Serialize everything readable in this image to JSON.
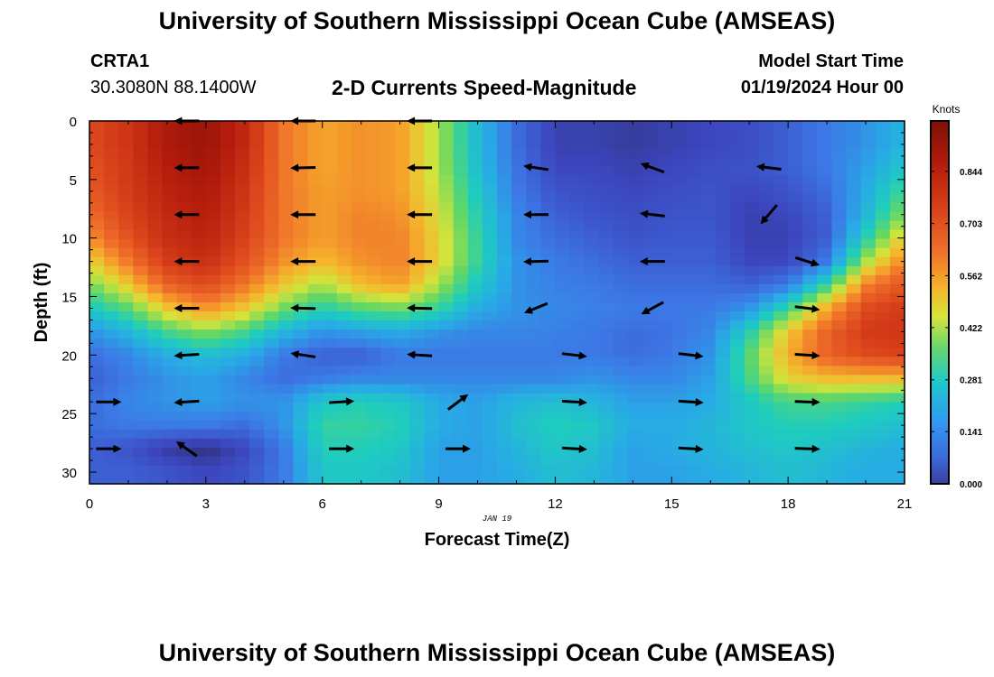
{
  "header": {
    "title": "University of Southern Mississippi Ocean Cube (AMSEAS)",
    "station": "CRTA1",
    "coordinates": "30.3080N  88.1400W",
    "plot_name": "2-D Currents Speed-Magnitude",
    "model_start_label": "Model Start Time",
    "model_start_value": "01/19/2024 Hour 00"
  },
  "footer": {
    "title": "University of Southern Mississippi Ocean Cube (AMSEAS)"
  },
  "chart_data": {
    "type": "heatmap",
    "xlabel": "Forecast Time(Z)",
    "ylabel": "Depth (ft)",
    "date_label": "JAN 19",
    "xlim": [
      0,
      21
    ],
    "ylim": [
      0,
      31
    ],
    "x_ticks": [
      "0",
      "3",
      "6",
      "9",
      "12",
      "15",
      "18",
      "21"
    ],
    "y_ticks": [
      "0",
      "5",
      "10",
      "15",
      "20",
      "25",
      "30"
    ],
    "colorbar": {
      "unit": "Knots",
      "range": [
        0,
        0.98
      ],
      "tick_labels": [
        "0.000",
        "0.141",
        "0.281",
        "0.422",
        "0.562",
        "0.703",
        "0.844"
      ],
      "tick_values": [
        0.0,
        0.141,
        0.281,
        0.422,
        0.562,
        0.703,
        0.844
      ]
    },
    "speed_grid": {
      "times": [
        0,
        1,
        2,
        3,
        4,
        5,
        6,
        7,
        8,
        9,
        10,
        11,
        12,
        13,
        14,
        15,
        16,
        17,
        18,
        19,
        20,
        21
      ],
      "depths": [
        0,
        2,
        4,
        6,
        8,
        10,
        12,
        14,
        16,
        18,
        20,
        22,
        24,
        26,
        28,
        30
      ],
      "values": [
        [
          0.72,
          0.78,
          0.88,
          0.92,
          0.82,
          0.62,
          0.55,
          0.58,
          0.56,
          0.42,
          0.25,
          0.12,
          0.05,
          0.05,
          0.04,
          0.05,
          0.06,
          0.07,
          0.1,
          0.14,
          0.18,
          0.24
        ],
        [
          0.72,
          0.78,
          0.88,
          0.92,
          0.82,
          0.62,
          0.55,
          0.58,
          0.56,
          0.42,
          0.25,
          0.12,
          0.05,
          0.05,
          0.04,
          0.05,
          0.06,
          0.07,
          0.1,
          0.14,
          0.18,
          0.24
        ],
        [
          0.7,
          0.77,
          0.86,
          0.9,
          0.8,
          0.62,
          0.55,
          0.58,
          0.56,
          0.42,
          0.26,
          0.13,
          0.06,
          0.06,
          0.05,
          0.06,
          0.07,
          0.08,
          0.1,
          0.14,
          0.2,
          0.28
        ],
        [
          0.68,
          0.76,
          0.84,
          0.88,
          0.78,
          0.62,
          0.56,
          0.58,
          0.56,
          0.44,
          0.28,
          0.14,
          0.08,
          0.07,
          0.06,
          0.07,
          0.08,
          0.06,
          0.08,
          0.12,
          0.22,
          0.34
        ],
        [
          0.64,
          0.74,
          0.82,
          0.86,
          0.76,
          0.62,
          0.56,
          0.6,
          0.58,
          0.46,
          0.3,
          0.16,
          0.1,
          0.08,
          0.07,
          0.08,
          0.08,
          0.05,
          0.06,
          0.1,
          0.24,
          0.4
        ],
        [
          0.58,
          0.7,
          0.8,
          0.84,
          0.74,
          0.62,
          0.56,
          0.6,
          0.6,
          0.48,
          0.32,
          0.16,
          0.12,
          0.1,
          0.08,
          0.09,
          0.09,
          0.05,
          0.05,
          0.1,
          0.3,
          0.5
        ],
        [
          0.48,
          0.62,
          0.76,
          0.8,
          0.7,
          0.58,
          0.52,
          0.58,
          0.6,
          0.48,
          0.32,
          0.18,
          0.14,
          0.12,
          0.1,
          0.1,
          0.1,
          0.06,
          0.06,
          0.14,
          0.42,
          0.6
        ],
        [
          0.38,
          0.5,
          0.66,
          0.72,
          0.62,
          0.5,
          0.42,
          0.52,
          0.56,
          0.42,
          0.28,
          0.18,
          0.15,
          0.14,
          0.12,
          0.12,
          0.12,
          0.1,
          0.14,
          0.32,
          0.6,
          0.7
        ],
        [
          0.28,
          0.36,
          0.5,
          0.58,
          0.5,
          0.38,
          0.3,
          0.36,
          0.38,
          0.32,
          0.22,
          0.18,
          0.16,
          0.15,
          0.14,
          0.14,
          0.14,
          0.18,
          0.32,
          0.54,
          0.72,
          0.76
        ],
        [
          0.18,
          0.24,
          0.34,
          0.4,
          0.34,
          0.24,
          0.18,
          0.2,
          0.22,
          0.18,
          0.16,
          0.16,
          0.15,
          0.14,
          0.12,
          0.13,
          0.16,
          0.3,
          0.5,
          0.66,
          0.76,
          0.78
        ],
        [
          0.12,
          0.16,
          0.22,
          0.26,
          0.22,
          0.14,
          0.1,
          0.1,
          0.14,
          0.14,
          0.14,
          0.14,
          0.14,
          0.14,
          0.12,
          0.14,
          0.18,
          0.36,
          0.54,
          0.66,
          0.72,
          0.74
        ],
        [
          0.1,
          0.14,
          0.18,
          0.2,
          0.16,
          0.12,
          0.14,
          0.16,
          0.16,
          0.16,
          0.16,
          0.16,
          0.16,
          0.18,
          0.16,
          0.16,
          0.2,
          0.34,
          0.48,
          0.52,
          0.52,
          0.52
        ],
        [
          0.12,
          0.16,
          0.18,
          0.2,
          0.18,
          0.18,
          0.28,
          0.3,
          0.28,
          0.22,
          0.2,
          0.24,
          0.26,
          0.24,
          0.2,
          0.2,
          0.22,
          0.28,
          0.34,
          0.34,
          0.32,
          0.3
        ],
        [
          0.12,
          0.14,
          0.14,
          0.14,
          0.12,
          0.18,
          0.32,
          0.32,
          0.3,
          0.22,
          0.2,
          0.26,
          0.3,
          0.28,
          0.22,
          0.22,
          0.24,
          0.28,
          0.3,
          0.3,
          0.28,
          0.26
        ],
        [
          0.1,
          0.08,
          0.04,
          0.02,
          0.06,
          0.14,
          0.3,
          0.3,
          0.28,
          0.2,
          0.2,
          0.24,
          0.28,
          0.26,
          0.2,
          0.22,
          0.24,
          0.26,
          0.28,
          0.26,
          0.24,
          0.22
        ],
        [
          0.1,
          0.1,
          0.08,
          0.06,
          0.08,
          0.14,
          0.28,
          0.28,
          0.26,
          0.2,
          0.2,
          0.22,
          0.26,
          0.24,
          0.2,
          0.2,
          0.22,
          0.24,
          0.26,
          0.24,
          0.22,
          0.22
        ]
      ]
    },
    "current_vectors": [
      {
        "t": 2.5,
        "d": 0,
        "dx": -1,
        "dy": 0
      },
      {
        "t": 5.5,
        "d": 0,
        "dx": -1,
        "dy": 0
      },
      {
        "t": 8.5,
        "d": 0,
        "dx": -1,
        "dy": 0
      },
      {
        "t": 2.5,
        "d": 4,
        "dx": -1,
        "dy": 0
      },
      {
        "t": 5.5,
        "d": 4,
        "dx": -1,
        "dy": 0.03
      },
      {
        "t": 8.5,
        "d": 4,
        "dx": -1,
        "dy": 0
      },
      {
        "t": 11.5,
        "d": 4,
        "dx": -1,
        "dy": -0.15
      },
      {
        "t": 14.5,
        "d": 4,
        "dx": -0.95,
        "dy": -0.35
      },
      {
        "t": 17.5,
        "d": 4,
        "dx": -1,
        "dy": -0.12
      },
      {
        "t": 2.5,
        "d": 8,
        "dx": -1,
        "dy": 0
      },
      {
        "t": 5.5,
        "d": 8,
        "dx": -1,
        "dy": 0
      },
      {
        "t": 8.5,
        "d": 8,
        "dx": -1,
        "dy": 0
      },
      {
        "t": 11.5,
        "d": 8,
        "dx": -1,
        "dy": 0
      },
      {
        "t": 14.5,
        "d": 8,
        "dx": -1,
        "dy": -0.12
      },
      {
        "t": 17.5,
        "d": 8,
        "dx": -0.65,
        "dy": 0.76
      },
      {
        "t": 2.5,
        "d": 12,
        "dx": -1,
        "dy": 0
      },
      {
        "t": 5.5,
        "d": 12,
        "dx": -1,
        "dy": 0
      },
      {
        "t": 8.5,
        "d": 12,
        "dx": -1,
        "dy": 0
      },
      {
        "t": 11.5,
        "d": 12,
        "dx": -1,
        "dy": 0.03
      },
      {
        "t": 14.5,
        "d": 12,
        "dx": -1,
        "dy": 0
      },
      {
        "t": 18.5,
        "d": 12,
        "dx": 0.95,
        "dy": 0.3
      },
      {
        "t": 2.5,
        "d": 16,
        "dx": -1,
        "dy": 0
      },
      {
        "t": 5.5,
        "d": 16,
        "dx": -1,
        "dy": -0.03
      },
      {
        "t": 8.5,
        "d": 16,
        "dx": -1,
        "dy": -0.03
      },
      {
        "t": 11.5,
        "d": 16,
        "dx": -0.92,
        "dy": 0.38
      },
      {
        "t": 14.5,
        "d": 16,
        "dx": -0.88,
        "dy": 0.48
      },
      {
        "t": 18.5,
        "d": 16,
        "dx": 1,
        "dy": 0.12
      },
      {
        "t": 2.5,
        "d": 20,
        "dx": -1,
        "dy": 0.06
      },
      {
        "t": 5.5,
        "d": 20,
        "dx": -1,
        "dy": -0.15
      },
      {
        "t": 8.5,
        "d": 20,
        "dx": -1,
        "dy": -0.06
      },
      {
        "t": 12.5,
        "d": 20,
        "dx": 1,
        "dy": 0.12
      },
      {
        "t": 15.5,
        "d": 20,
        "dx": 1,
        "dy": 0.12
      },
      {
        "t": 18.5,
        "d": 20,
        "dx": 1,
        "dy": 0.06
      },
      {
        "t": 0.5,
        "d": 24,
        "dx": 1,
        "dy": 0
      },
      {
        "t": 2.5,
        "d": 24,
        "dx": -1,
        "dy": 0.06
      },
      {
        "t": 6.5,
        "d": 24,
        "dx": 1,
        "dy": -0.06
      },
      {
        "t": 9.5,
        "d": 24,
        "dx": 0.8,
        "dy": -0.6
      },
      {
        "t": 12.5,
        "d": 24,
        "dx": 1,
        "dy": 0.06
      },
      {
        "t": 15.5,
        "d": 24,
        "dx": 1,
        "dy": 0.06
      },
      {
        "t": 18.5,
        "d": 24,
        "dx": 1,
        "dy": 0.03
      },
      {
        "t": 0.5,
        "d": 28,
        "dx": 1,
        "dy": 0
      },
      {
        "t": 2.5,
        "d": 28,
        "dx": -0.82,
        "dy": -0.58
      },
      {
        "t": 6.5,
        "d": 28,
        "dx": 1,
        "dy": 0
      },
      {
        "t": 9.5,
        "d": 28,
        "dx": 1,
        "dy": 0
      },
      {
        "t": 12.5,
        "d": 28,
        "dx": 1,
        "dy": 0.06
      },
      {
        "t": 15.5,
        "d": 28,
        "dx": 1,
        "dy": 0.06
      },
      {
        "t": 18.5,
        "d": 28,
        "dx": 1,
        "dy": 0.03
      }
    ]
  }
}
